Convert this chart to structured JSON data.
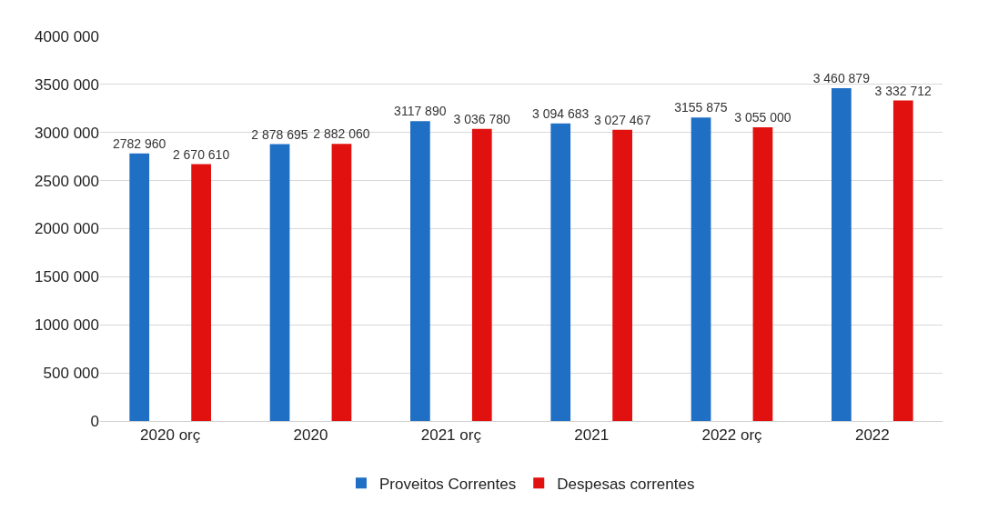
{
  "chart_data": {
    "type": "bar",
    "categories": [
      "2020 orç",
      "2020",
      "2021 orç",
      "2021",
      "2022 orç",
      "2022"
    ],
    "series": [
      {
        "name": "Proveitos Correntes",
        "color": "#1f6fc5",
        "values": [
          2782960,
          2878695,
          3117890,
          3094683,
          3155875,
          3460879
        ],
        "value_labels": [
          "2782 960",
          "2 878 695",
          "3117 890",
          "3 094 683",
          "3155 875",
          "3 460 879"
        ]
      },
      {
        "name": "Despesas correntes",
        "color": "#e0110f",
        "values": [
          2670610,
          2882060,
          3036780,
          3027467,
          3055000,
          3332712
        ],
        "value_labels": [
          "2 670 610",
          "2 882 060",
          "3 036 780",
          "3 027 467",
          "3 055 000",
          "3 332 712"
        ]
      }
    ],
    "ylim": [
      0,
      4000000
    ],
    "yticks": [
      0,
      {
        "value": 500000,
        "label": "500 000"
      },
      {
        "value": 1000000,
        "label": "1000 000"
      },
      {
        "value": 1500000,
        "label": "1500 000"
      },
      {
        "value": 2000000,
        "label": "2000 000"
      },
      {
        "value": 2500000,
        "label": "2500 000"
      },
      {
        "value": 3000000,
        "label": "3000 000"
      },
      {
        "value": 3500000,
        "label": "3500 000"
      },
      {
        "value": 4000000,
        "label": "4000 000"
      }
    ],
    "grid": "y",
    "legend": "bottom"
  }
}
